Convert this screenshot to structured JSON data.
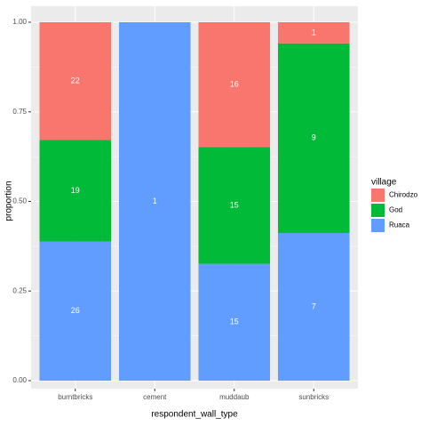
{
  "chart_data": {
    "type": "stacked_bar",
    "x_label": "respondent_wall_type",
    "y_label": "proportion",
    "categories": [
      "burntbricks",
      "cement",
      "muddaub",
      "sunbricks"
    ],
    "series": [
      {
        "name": "Chirodzo",
        "color": "#F8766D",
        "values": [
          0.328,
          null,
          0.348,
          0.059
        ],
        "value_labels": [
          "22",
          null,
          "16",
          "1"
        ]
      },
      {
        "name": "God",
        "color": "#00BA38",
        "values": [
          0.284,
          null,
          0.326,
          0.529
        ],
        "value_labels": [
          "19",
          null,
          "15",
          "9"
        ]
      },
      {
        "name": "Ruaca",
        "color": "#619CFF",
        "values": [
          0.388,
          1.0,
          0.326,
          0.412
        ],
        "value_labels": [
          "26",
          "1",
          "15",
          "7"
        ]
      }
    ],
    "legend_title": "village",
    "ylim": [
      0,
      1
    ],
    "yticks": [
      {
        "value": 0,
        "label": "0.00"
      },
      {
        "value": 0.25,
        "label": "0.25"
      },
      {
        "value": 0.5,
        "label": "0.50"
      },
      {
        "value": 0.75,
        "label": "0.75"
      },
      {
        "value": 1,
        "label": "1.00"
      }
    ],
    "grid": true,
    "legend_position": "right"
  }
}
